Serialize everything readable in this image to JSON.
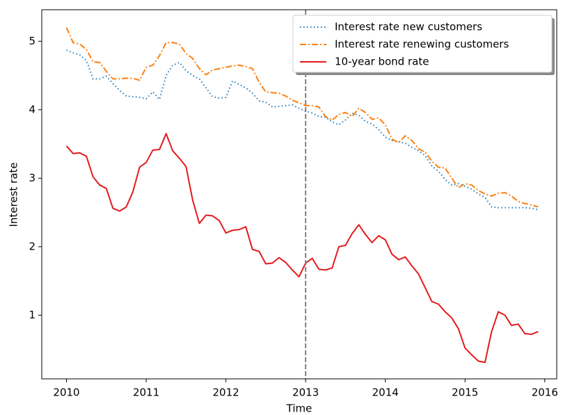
{
  "chart_data": {
    "type": "line",
    "x_label": "Time",
    "y_label": "Interest rate",
    "x": [
      2010,
      2010.083,
      2010.167,
      2010.25,
      2010.333,
      2010.417,
      2010.5,
      2010.583,
      2010.667,
      2010.75,
      2010.833,
      2010.917,
      2011,
      2011.083,
      2011.167,
      2011.25,
      2011.333,
      2011.417,
      2011.5,
      2011.583,
      2011.667,
      2011.75,
      2011.833,
      2011.917,
      2012,
      2012.083,
      2012.167,
      2012.25,
      2012.333,
      2012.417,
      2012.5,
      2012.583,
      2012.667,
      2012.75,
      2012.833,
      2012.917,
      2013,
      2013.083,
      2013.167,
      2013.25,
      2013.333,
      2013.417,
      2013.5,
      2013.583,
      2013.667,
      2013.75,
      2013.833,
      2013.917,
      2014,
      2014.083,
      2014.167,
      2014.25,
      2014.333,
      2014.417,
      2014.5,
      2014.583,
      2014.667,
      2014.75,
      2014.833,
      2014.917,
      2015,
      2015.083,
      2015.167,
      2015.25,
      2015.333,
      2015.417,
      2015.5,
      2015.583,
      2015.667,
      2015.75,
      2015.833,
      2015.917
    ],
    "series": [
      {
        "name": "Interest rate new customers",
        "color": "#1f77b4",
        "linestyle": "dotted",
        "values": [
          4.87,
          4.83,
          4.8,
          4.72,
          4.45,
          4.45,
          4.49,
          4.38,
          4.28,
          4.2,
          4.19,
          4.18,
          4.16,
          4.26,
          4.15,
          4.5,
          4.65,
          4.69,
          4.57,
          4.5,
          4.45,
          4.32,
          4.19,
          4.17,
          4.18,
          4.42,
          4.37,
          4.32,
          4.24,
          4.13,
          4.11,
          4.04,
          4.05,
          4.06,
          4.07,
          4.02,
          3.98,
          3.95,
          3.9,
          3.89,
          3.82,
          3.78,
          3.85,
          3.95,
          3.92,
          3.83,
          3.79,
          3.71,
          3.6,
          3.55,
          3.53,
          3.51,
          3.45,
          3.4,
          3.33,
          3.18,
          3.1,
          2.98,
          2.9,
          2.92,
          2.88,
          2.84,
          2.77,
          2.72,
          2.58,
          2.57,
          2.57,
          2.57,
          2.57,
          2.57,
          2.56,
          2.54
        ]
      },
      {
        "name": "Interest rate renewing customers",
        "color": "#ff7f0e",
        "linestyle": "dashdot",
        "values": [
          5.2,
          4.98,
          4.96,
          4.88,
          4.7,
          4.69,
          4.56,
          4.45,
          4.45,
          4.46,
          4.46,
          4.43,
          4.62,
          4.65,
          4.79,
          4.98,
          4.98,
          4.96,
          4.82,
          4.75,
          4.6,
          4.51,
          4.58,
          4.6,
          4.62,
          4.64,
          4.65,
          4.63,
          4.6,
          4.4,
          4.26,
          4.25,
          4.24,
          4.2,
          4.14,
          4.1,
          4.06,
          4.06,
          4.04,
          3.9,
          3.85,
          3.93,
          3.96,
          3.9,
          4.02,
          3.96,
          3.86,
          3.88,
          3.78,
          3.57,
          3.52,
          3.62,
          3.55,
          3.43,
          3.38,
          3.25,
          3.16,
          3.15,
          3.0,
          2.86,
          2.92,
          2.9,
          2.82,
          2.77,
          2.74,
          2.78,
          2.79,
          2.74,
          2.66,
          2.63,
          2.61,
          2.58
        ]
      },
      {
        "name": "10-year bond rate",
        "color": "#e41a1c",
        "linestyle": "solid",
        "values": [
          3.47,
          3.36,
          3.37,
          3.32,
          3.02,
          2.9,
          2.85,
          2.56,
          2.52,
          2.58,
          2.8,
          3.16,
          3.23,
          3.41,
          3.42,
          3.65,
          3.4,
          3.29,
          3.17,
          2.68,
          2.34,
          2.46,
          2.45,
          2.38,
          2.2,
          2.24,
          2.25,
          2.29,
          1.96,
          1.93,
          1.75,
          1.76,
          1.84,
          1.77,
          1.66,
          1.56,
          1.76,
          1.83,
          1.67,
          1.66,
          1.69,
          2.0,
          2.02,
          2.19,
          2.32,
          2.18,
          2.06,
          2.16,
          2.1,
          1.89,
          1.81,
          1.85,
          1.72,
          1.6,
          1.4,
          1.2,
          1.16,
          1.05,
          0.96,
          0.8,
          0.52,
          0.42,
          0.33,
          0.31,
          0.76,
          1.05,
          1.0,
          0.85,
          0.87,
          0.73,
          0.72,
          0.76
        ]
      }
    ],
    "vline": 2013,
    "xlim": [
      2009.69,
      2016.15
    ],
    "xticks": [
      2010,
      2011,
      2012,
      2013,
      2014,
      2015,
      2016
    ],
    "ylim": [
      0.07,
      5.46
    ],
    "yticks": [
      1,
      2,
      3,
      4,
      5
    ],
    "grid": false,
    "legend": "upper right"
  }
}
